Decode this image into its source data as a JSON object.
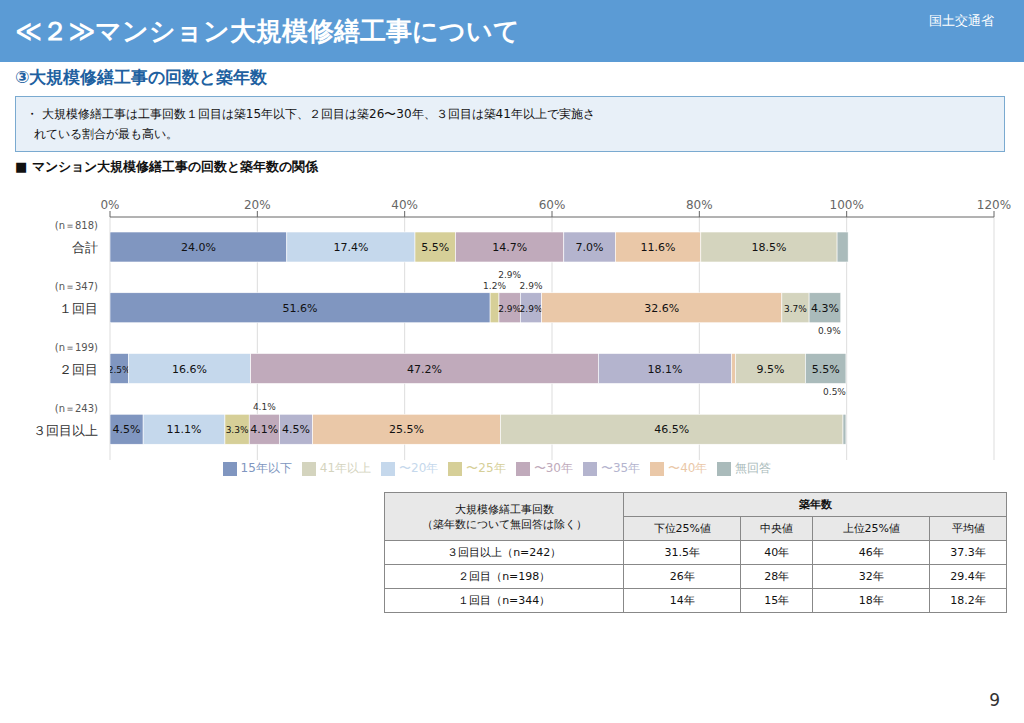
{
  "page": {
    "title": "≪２≫マンション大規模修繕工事について",
    "ministry": "国土交通省",
    "subtitle": "③大規模修繕工事の回数と築年数",
    "bullets": [
      "・ 大規模修繕工事は工事回数１回目は築15年以下、２回目は築26〜30年、３回目は築41年以上で実施さ",
      "  れている割合が最も高い。"
    ],
    "page_number": "9",
    "table": {
      "header_left": [
        "大規模修繕工事回数",
        "（築年数について無回答は除く）"
      ],
      "group_header": "築年数",
      "columns": [
        "下位25%値",
        "中央値",
        "上位25%値",
        "平均値"
      ],
      "rows": [
        {
          "label": "３回目以上（n=242）",
          "values": [
            "31.5年",
            "40年",
            "46年",
            "37.3年"
          ]
        },
        {
          "label": "２回目（n=198）",
          "values": [
            "26年",
            "28年",
            "32年",
            "29.4年"
          ]
        },
        {
          "label": "１回目（n=344）",
          "values": [
            "14年",
            "15年",
            "18年",
            "18.2年"
          ]
        }
      ]
    }
  },
  "chart_data": {
    "type": "bar",
    "title": "■ マンション大規模修繕工事の回数と築年数の関係",
    "orientation": "horizontal",
    "stacked": true,
    "data_labels": true,
    "grid": true,
    "legend": "bottom",
    "categories": [
      "合計",
      "１回目",
      "２回目",
      "３回目以上"
    ],
    "n_labels": [
      "(n＝818)",
      "(n＝347)",
      "(n＝199)",
      "(n＝243)"
    ],
    "xlim": [
      0,
      120
    ],
    "xticks": [
      {
        "value": 0,
        "label": "0%"
      },
      {
        "value": 20,
        "label": "20%"
      },
      {
        "value": 40,
        "label": "40%"
      },
      {
        "value": 60,
        "label": "60%"
      },
      {
        "value": 80,
        "label": "80%"
      },
      {
        "value": 100,
        "label": "100%"
      },
      {
        "value": 120,
        "label": "120%"
      }
    ],
    "series": [
      {
        "name": "15年以下",
        "color": "#8096C0",
        "values": [
          24.0,
          51.6,
          2.5,
          4.5
        ],
        "value_labels": [
          "24.0%",
          "51.6%",
          "2.5%",
          "4.5%"
        ]
      },
      {
        "name": "〜20年",
        "color": "#C5D8EC",
        "values": [
          17.4,
          0.0,
          16.6,
          11.1
        ],
        "value_labels": [
          "17.4%",
          null,
          "16.6%",
          "11.1%"
        ]
      },
      {
        "name": "〜25年",
        "color": "#D6CF98",
        "values": [
          5.5,
          1.2,
          0.0,
          3.3
        ],
        "value_labels": [
          "5.5%",
          null,
          null,
          "3.3%"
        ]
      },
      {
        "name": "〜30年",
        "color": "#C0AABB",
        "values": [
          14.7,
          2.9,
          47.2,
          4.1
        ],
        "value_labels": [
          "14.7%",
          "2.9%",
          "47.2%",
          "4.1%"
        ]
      },
      {
        "name": "〜35年",
        "color": "#B4B4CE",
        "values": [
          7.0,
          2.9,
          18.1,
          4.5
        ],
        "value_labels": [
          "7.0%",
          "2.9%",
          "18.1%",
          "4.5%"
        ]
      },
      {
        "name": "〜40年",
        "color": "#EAC8A8",
        "values": [
          11.6,
          32.6,
          0.5,
          25.5
        ],
        "value_labels": [
          "11.6%",
          "32.6%",
          null,
          "25.5%"
        ]
      },
      {
        "name": "41年以上",
        "color": "#D4D4BE",
        "values": [
          18.5,
          3.7,
          9.5,
          46.5
        ],
        "value_labels": [
          "18.5%",
          "3.7%",
          "9.5%",
          "46.5%"
        ]
      },
      {
        "name": "無回答",
        "color": "#AABBBB",
        "values": [
          1.5,
          4.3,
          5.5,
          0.4
        ],
        "value_labels": [
          null,
          "4.3%",
          "5.5%",
          null
        ]
      }
    ],
    "annotations": [
      {
        "text": "1.2%",
        "category": "１回目",
        "series": "〜25年"
      },
      {
        "text": "2.9%",
        "category": "１回目",
        "series": "〜30年"
      },
      {
        "text": "2.9%",
        "category": "１回目",
        "series": "〜35年"
      },
      {
        "text": "0.9%",
        "category": "１回目"
      },
      {
        "text": "0.5%",
        "category": "２回目"
      },
      {
        "text": "4.1%",
        "category": "３回目以上",
        "series": "〜30年"
      }
    ]
  }
}
